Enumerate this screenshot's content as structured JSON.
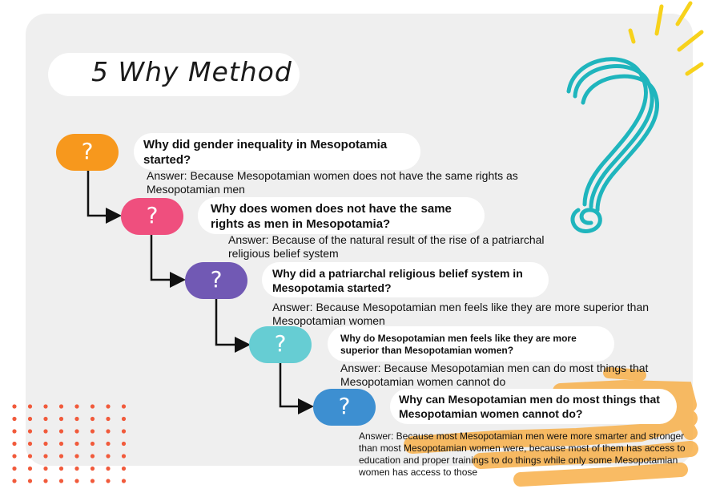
{
  "title": "5 Why Method",
  "node_symbol": "?",
  "colors": {
    "panel": "#efefef",
    "node_orange": "#f7981d",
    "node_pink": "#ef4f7e",
    "node_purple": "#7159b4",
    "node_teal": "#66cdd3",
    "node_blue": "#3d8fd1",
    "question_mark_deco": "#1fb5bd",
    "spark_deco": "#f7d21c",
    "dots_deco": "#f15a3b",
    "highlight_deco": "#f8b04a"
  },
  "steps": [
    {
      "question": "Why did gender inequality in Mesopotamia started?",
      "answer": "Answer: Because Mesopotamian women does not have the same rights as Mesopotamian men"
    },
    {
      "question": "Why does women does not have the same rights as men in Mesopotamia?",
      "answer": "Answer: Because of the natural result of the rise of a patriarchal religious belief system"
    },
    {
      "question": "Why did a patriarchal religious belief system in Mesopotamia started?",
      "answer": "Answer: Because Mesopotamian men feels like they are more superior than Mesopotamian women"
    },
    {
      "question": "Why do Mesopotamian men feels like they are more superior than Mesopotamian women?",
      "answer": "Answer: Because Mesopotamian men can do most things that Mesopotamian women cannot do"
    },
    {
      "question": "Why can Mesopotamian men do most things that Mesopotamian women cannot do?",
      "answer": "Answer: Because most Mesopotamian men were more smarter and stronger than most Mesopotamian women were, because most of them has access to education and proper trainings to do things while only some Mesopotamian women has access to those"
    }
  ]
}
